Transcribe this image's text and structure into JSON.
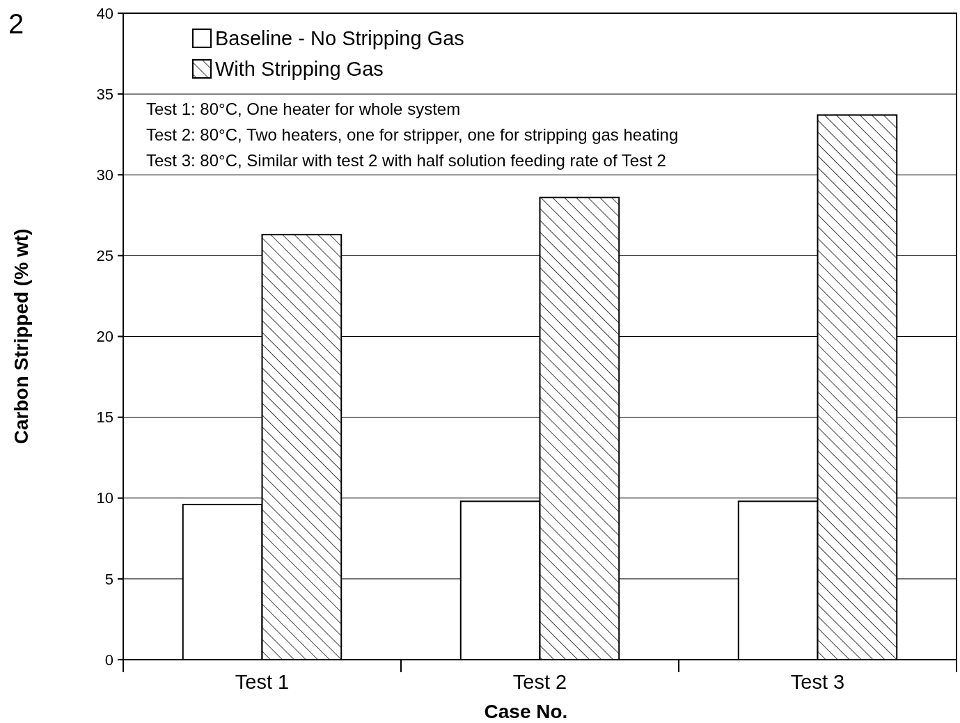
{
  "chart_data": {
    "type": "bar",
    "xlabel": "Case No.",
    "ylabel": "Carbon Stripped (% wt)",
    "categories": [
      "Test 1",
      "Test 2",
      "Test 3"
    ],
    "series": [
      {
        "name": "Baseline - No Stripping Gas",
        "color": "#ffffff",
        "values": [
          9.6,
          9.8,
          9.8
        ]
      },
      {
        "name": "With Stripping Gas",
        "color": "#000000",
        "values": [
          26.3,
          28.6,
          33.7
        ]
      }
    ],
    "ylim": [
      0,
      40
    ],
    "yticks": [
      0,
      5,
      10,
      15,
      20,
      25,
      30,
      35,
      40
    ],
    "grid": "y",
    "legend": "top left",
    "annotations": [
      "2",
      "Test 1: 80°C, One heater for whole system",
      "Test 2: 80°C, Two heaters, one for stripper, one for stripping gas heating",
      "Test 3: 80°C, Similar with test 2 with half solution feeding rate of Test 2"
    ]
  }
}
